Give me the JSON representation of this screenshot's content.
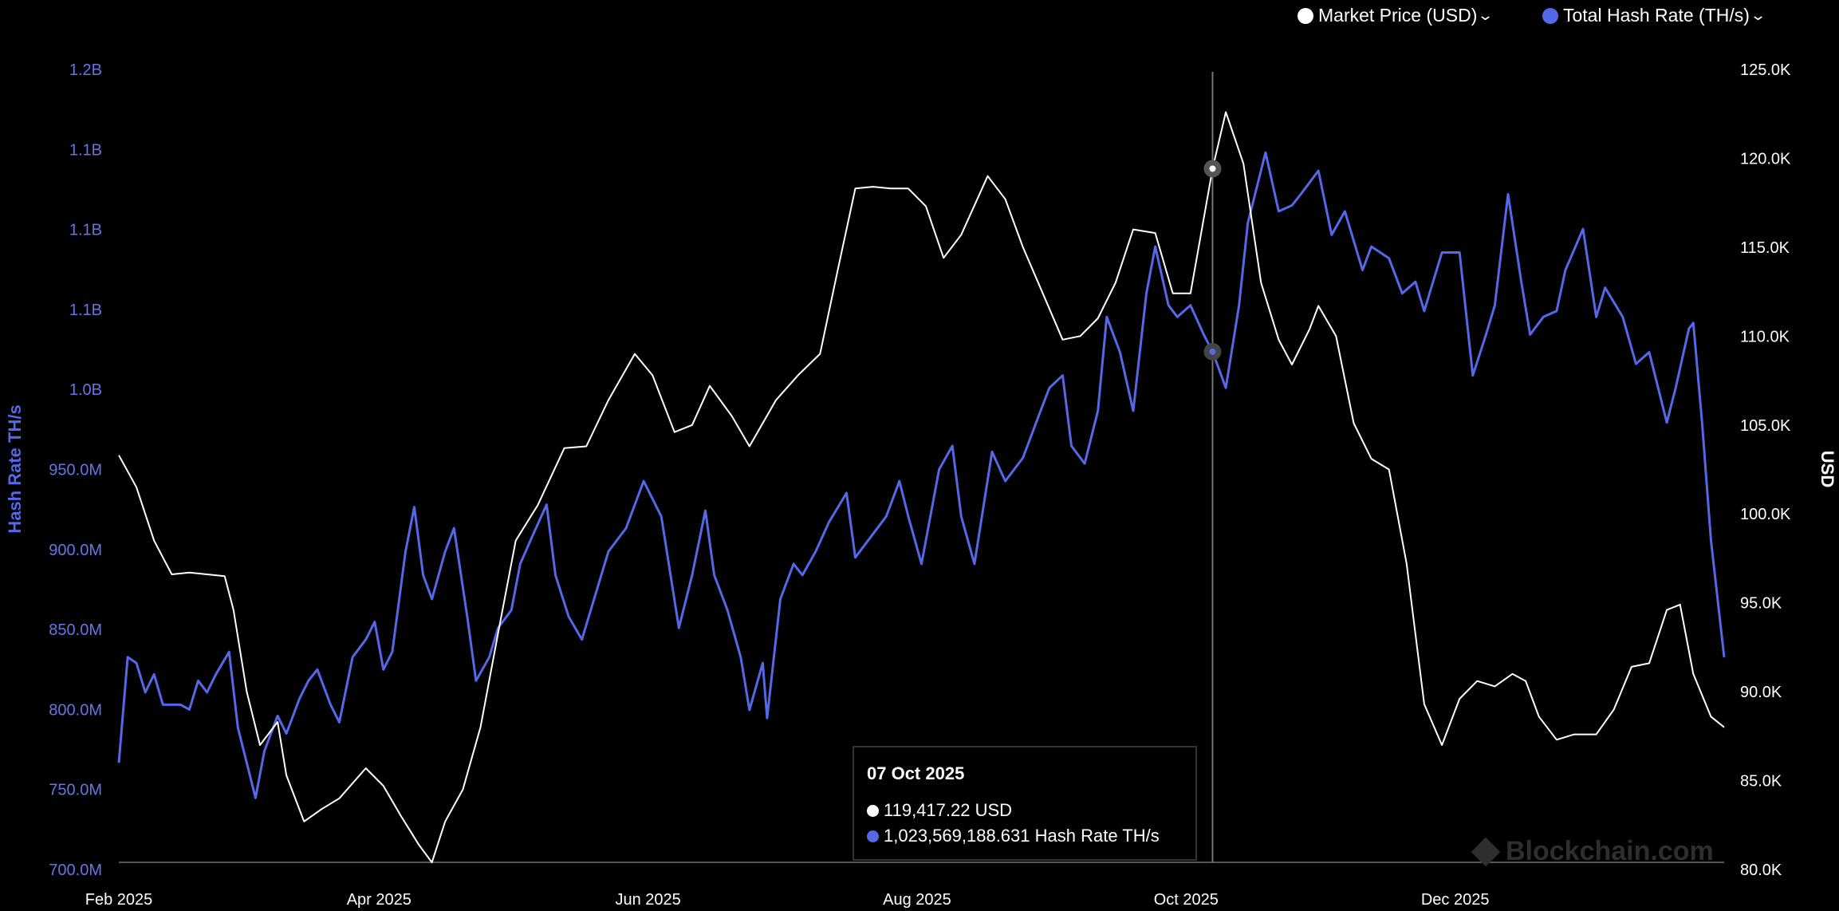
{
  "legend": {
    "items": [
      {
        "label": "Market Price (USD)",
        "color": "#ffffff",
        "icon": "chevron-down-icon"
      },
      {
        "label": "Total Hash Rate (TH/s)",
        "color": "#5468e8",
        "icon": "chevron-down-icon"
      }
    ]
  },
  "tooltip": {
    "date": "07 Oct 2025",
    "price": "119,417.22 USD",
    "hash": "1,023,569,188.631 Hash Rate TH/s"
  },
  "watermark": "Blockchain.com",
  "chart_data": {
    "type": "line",
    "xlabel": "",
    "x_ticks": [
      "Feb 2025",
      "Apr 2025",
      "Jun 2025",
      "Aug 2025",
      "Oct 2025",
      "Dec 2025"
    ],
    "xlim": [
      "2025-02-01",
      "2026-01-31"
    ],
    "y_left": {
      "label": "Hash Rate TH/s",
      "range_millions": [
        700,
        1200
      ],
      "ticks": [
        "700.0M",
        "750.0M",
        "800.0M",
        "850.0M",
        "900.0M",
        "950.0M",
        "1.0B",
        "1.1B",
        "1.1B",
        "1.1B",
        "1.2B"
      ]
    },
    "y_right": {
      "label": "USD",
      "range": [
        80000,
        125000
      ],
      "ticks": [
        "80.0K",
        "85.0K",
        "90.0K",
        "95.0K",
        "100.0K",
        "105.0K",
        "110.0K",
        "115.0K",
        "120.0K",
        "125.0K"
      ]
    },
    "grid": false,
    "legend_position": "top-right",
    "crosshair_date": "2025-10-07",
    "series": [
      {
        "name": "Market Price (USD)",
        "axis": "right",
        "color": "#ffffff",
        "points": [
          [
            "2025-02-01",
            103300
          ],
          [
            "2025-02-05",
            101500
          ],
          [
            "2025-02-09",
            98500
          ],
          [
            "2025-02-13",
            96600
          ],
          [
            "2025-02-17",
            96700
          ],
          [
            "2025-02-21",
            96600
          ],
          [
            "2025-02-25",
            96500
          ],
          [
            "2025-02-27",
            94600
          ],
          [
            "2025-03-02",
            90000
          ],
          [
            "2025-03-05",
            87000
          ],
          [
            "2025-03-09",
            88300
          ],
          [
            "2025-03-11",
            85300
          ],
          [
            "2025-03-15",
            82700
          ],
          [
            "2025-03-19",
            83400
          ],
          [
            "2025-03-23",
            84000
          ],
          [
            "2025-03-29",
            85700
          ],
          [
            "2025-04-02",
            84700
          ],
          [
            "2025-04-06",
            83000
          ],
          [
            "2025-04-10",
            81400
          ],
          [
            "2025-04-13",
            80400
          ],
          [
            "2025-04-16",
            82700
          ],
          [
            "2025-04-20",
            84500
          ],
          [
            "2025-04-24",
            88000
          ],
          [
            "2025-04-28",
            93300
          ],
          [
            "2025-05-02",
            98500
          ],
          [
            "2025-05-07",
            100500
          ],
          [
            "2025-05-13",
            103700
          ],
          [
            "2025-05-18",
            103800
          ],
          [
            "2025-05-23",
            106400
          ],
          [
            "2025-05-29",
            109000
          ],
          [
            "2025-06-02",
            107800
          ],
          [
            "2025-06-07",
            104600
          ],
          [
            "2025-06-11",
            105000
          ],
          [
            "2025-06-15",
            107200
          ],
          [
            "2025-06-20",
            105500
          ],
          [
            "2025-06-24",
            103800
          ],
          [
            "2025-06-30",
            106400
          ],
          [
            "2025-07-05",
            107800
          ],
          [
            "2025-07-10",
            109000
          ],
          [
            "2025-07-14",
            113700
          ],
          [
            "2025-07-18",
            118300
          ],
          [
            "2025-07-22",
            118400
          ],
          [
            "2025-07-26",
            118300
          ],
          [
            "2025-07-30",
            118300
          ],
          [
            "2025-08-03",
            117300
          ],
          [
            "2025-08-07",
            114400
          ],
          [
            "2025-08-11",
            115700
          ],
          [
            "2025-08-17",
            119000
          ],
          [
            "2025-08-21",
            117700
          ],
          [
            "2025-08-25",
            115000
          ],
          [
            "2025-08-29",
            112700
          ],
          [
            "2025-09-03",
            109800
          ],
          [
            "2025-09-07",
            110000
          ],
          [
            "2025-09-11",
            111000
          ],
          [
            "2025-09-15",
            113000
          ],
          [
            "2025-09-19",
            116000
          ],
          [
            "2025-09-24",
            115800
          ],
          [
            "2025-09-28",
            112400
          ],
          [
            "2025-10-02",
            112400
          ],
          [
            "2025-10-07",
            119417
          ],
          [
            "2025-10-10",
            122600
          ],
          [
            "2025-10-14",
            119700
          ],
          [
            "2025-10-18",
            113000
          ],
          [
            "2025-10-22",
            109800
          ],
          [
            "2025-10-25",
            108400
          ],
          [
            "2025-10-29",
            110400
          ],
          [
            "2025-10-31",
            111700
          ],
          [
            "2025-11-04",
            110000
          ],
          [
            "2025-11-08",
            105100
          ],
          [
            "2025-11-12",
            103100
          ],
          [
            "2025-11-16",
            102500
          ],
          [
            "2025-11-20",
            97200
          ],
          [
            "2025-11-24",
            89300
          ],
          [
            "2025-11-28",
            87000
          ],
          [
            "2025-12-02",
            89600
          ],
          [
            "2025-12-06",
            90600
          ],
          [
            "2025-12-10",
            90300
          ],
          [
            "2025-12-14",
            91000
          ],
          [
            "2025-12-17",
            90600
          ],
          [
            "2025-12-20",
            88600
          ],
          [
            "2025-12-24",
            87300
          ],
          [
            "2025-12-28",
            87600
          ],
          [
            "2026-01-02",
            87600
          ],
          [
            "2026-01-06",
            89000
          ],
          [
            "2026-01-10",
            91400
          ],
          [
            "2026-01-14",
            91600
          ],
          [
            "2026-01-18",
            94600
          ],
          [
            "2026-01-21",
            94900
          ],
          [
            "2026-01-24",
            91000
          ],
          [
            "2026-01-28",
            88600
          ],
          [
            "2026-01-31",
            88000
          ]
        ]
      },
      {
        "name": "Total Hash Rate (TH/s)",
        "axis": "left",
        "color": "#5468e8",
        "points_millions": [
          [
            "2025-02-01",
            766.7
          ],
          [
            "2025-02-03",
            832.7
          ],
          [
            "2025-02-05",
            829
          ],
          [
            "2025-02-07",
            810.7
          ],
          [
            "2025-02-09",
            822
          ],
          [
            "2025-02-11",
            803
          ],
          [
            "2025-02-13",
            803
          ],
          [
            "2025-02-15",
            803
          ],
          [
            "2025-02-17",
            800
          ],
          [
            "2025-02-19",
            818
          ],
          [
            "2025-02-21",
            810.7
          ],
          [
            "2025-02-23",
            822
          ],
          [
            "2025-02-26",
            836
          ],
          [
            "2025-02-28",
            788.7
          ],
          [
            "2025-03-02",
            766.7
          ],
          [
            "2025-03-04",
            744.7
          ],
          [
            "2025-03-06",
            774
          ],
          [
            "2025-03-09",
            796
          ],
          [
            "2025-03-11",
            785
          ],
          [
            "2025-03-14",
            807
          ],
          [
            "2025-03-16",
            818
          ],
          [
            "2025-03-18",
            825
          ],
          [
            "2025-03-21",
            803
          ],
          [
            "2025-03-23",
            792
          ],
          [
            "2025-03-26",
            832.7
          ],
          [
            "2025-03-29",
            843.7
          ],
          [
            "2025-03-31",
            854.7
          ],
          [
            "2025-04-02",
            825
          ],
          [
            "2025-04-04",
            836
          ],
          [
            "2025-04-07",
            898.7
          ],
          [
            "2025-04-09",
            926.5
          ],
          [
            "2025-04-11",
            884
          ],
          [
            "2025-04-13",
            869
          ],
          [
            "2025-04-16",
            898.7
          ],
          [
            "2025-04-18",
            913.3
          ],
          [
            "2025-04-21",
            858
          ],
          [
            "2025-04-23",
            818
          ],
          [
            "2025-04-26",
            832.7
          ],
          [
            "2025-04-28",
            851
          ],
          [
            "2025-05-01",
            862
          ],
          [
            "2025-05-03",
            891
          ],
          [
            "2025-05-06",
            909.7
          ],
          [
            "2025-05-09",
            928
          ],
          [
            "2025-05-11",
            884
          ],
          [
            "2025-05-14",
            858
          ],
          [
            "2025-05-17",
            843.7
          ],
          [
            "2025-05-19",
            862
          ],
          [
            "2025-05-23",
            898.7
          ],
          [
            "2025-05-27",
            913.3
          ],
          [
            "2025-05-31",
            942.7
          ],
          [
            "2025-06-04",
            920.7
          ],
          [
            "2025-06-08",
            851
          ],
          [
            "2025-06-11",
            884
          ],
          [
            "2025-06-14",
            924.3
          ],
          [
            "2025-06-16",
            884
          ],
          [
            "2025-06-19",
            862
          ],
          [
            "2025-06-22",
            832.7
          ],
          [
            "2025-06-24",
            799.7
          ],
          [
            "2025-06-27",
            829
          ],
          [
            "2025-06-28",
            794.6
          ],
          [
            "2025-07-01",
            869
          ],
          [
            "2025-07-04",
            891
          ],
          [
            "2025-07-06",
            884
          ],
          [
            "2025-07-09",
            898.7
          ],
          [
            "2025-07-12",
            917
          ],
          [
            "2025-07-16",
            935.3
          ],
          [
            "2025-07-18",
            895
          ],
          [
            "2025-07-21",
            906
          ],
          [
            "2025-07-25",
            920.7
          ],
          [
            "2025-07-28",
            942.7
          ],
          [
            "2025-07-30",
            920.7
          ],
          [
            "2025-08-02",
            891
          ],
          [
            "2025-08-06",
            950
          ],
          [
            "2025-08-09",
            964.7
          ],
          [
            "2025-08-11",
            920.7
          ],
          [
            "2025-08-14",
            891
          ],
          [
            "2025-08-18",
            961
          ],
          [
            "2025-08-21",
            942.7
          ],
          [
            "2025-08-25",
            957.3
          ],
          [
            "2025-08-29",
            986.6
          ],
          [
            "2025-08-31",
            1001
          ],
          [
            "2025-09-03",
            1008.7
          ],
          [
            "2025-09-05",
            964.7
          ],
          [
            "2025-09-08",
            953.7
          ],
          [
            "2025-09-11",
            986.6
          ],
          [
            "2025-09-13",
            1045.3
          ],
          [
            "2025-09-16",
            1023.3
          ],
          [
            "2025-09-19",
            986.6
          ],
          [
            "2025-09-22",
            1060
          ],
          [
            "2025-09-24",
            1089.3
          ],
          [
            "2025-09-27",
            1052.6
          ],
          [
            "2025-09-29",
            1045.3
          ],
          [
            "2025-10-02",
            1052.6
          ],
          [
            "2025-10-05",
            1034.3
          ],
          [
            "2025-10-07",
            1023.6
          ],
          [
            "2025-10-10",
            1001
          ],
          [
            "2025-10-13",
            1052.6
          ],
          [
            "2025-10-15",
            1104
          ],
          [
            "2025-10-19",
            1148
          ],
          [
            "2025-10-22",
            1111.3
          ],
          [
            "2025-10-25",
            1115
          ],
          [
            "2025-10-27",
            1122
          ],
          [
            "2025-10-31",
            1136.7
          ],
          [
            "2025-11-03",
            1096.6
          ],
          [
            "2025-11-06",
            1111.3
          ],
          [
            "2025-11-10",
            1074.6
          ],
          [
            "2025-11-12",
            1089.3
          ],
          [
            "2025-11-16",
            1082
          ],
          [
            "2025-11-19",
            1060
          ],
          [
            "2025-11-22",
            1067.3
          ],
          [
            "2025-11-24",
            1049
          ],
          [
            "2025-11-28",
            1085.6
          ],
          [
            "2025-12-02",
            1085.6
          ],
          [
            "2025-12-05",
            1008.7
          ],
          [
            "2025-12-08",
            1034.3
          ],
          [
            "2025-12-10",
            1052.6
          ],
          [
            "2025-12-13",
            1122
          ],
          [
            "2025-12-16",
            1067.3
          ],
          [
            "2025-12-18",
            1034.3
          ],
          [
            "2025-12-21",
            1045.3
          ],
          [
            "2025-12-24",
            1049
          ],
          [
            "2025-12-26",
            1074.6
          ],
          [
            "2025-12-30",
            1100.3
          ],
          [
            "2026-01-02",
            1045.3
          ],
          [
            "2026-01-04",
            1063.6
          ],
          [
            "2026-01-08",
            1045.3
          ],
          [
            "2026-01-11",
            1016
          ],
          [
            "2026-01-14",
            1023.3
          ],
          [
            "2026-01-18",
            979.3
          ],
          [
            "2026-01-20",
            1001
          ],
          [
            "2026-01-23",
            1038
          ],
          [
            "2026-01-24",
            1041.6
          ],
          [
            "2026-01-26",
            979.3
          ],
          [
            "2026-01-28",
            906
          ],
          [
            "2026-01-31",
            832.7
          ]
        ]
      }
    ]
  }
}
